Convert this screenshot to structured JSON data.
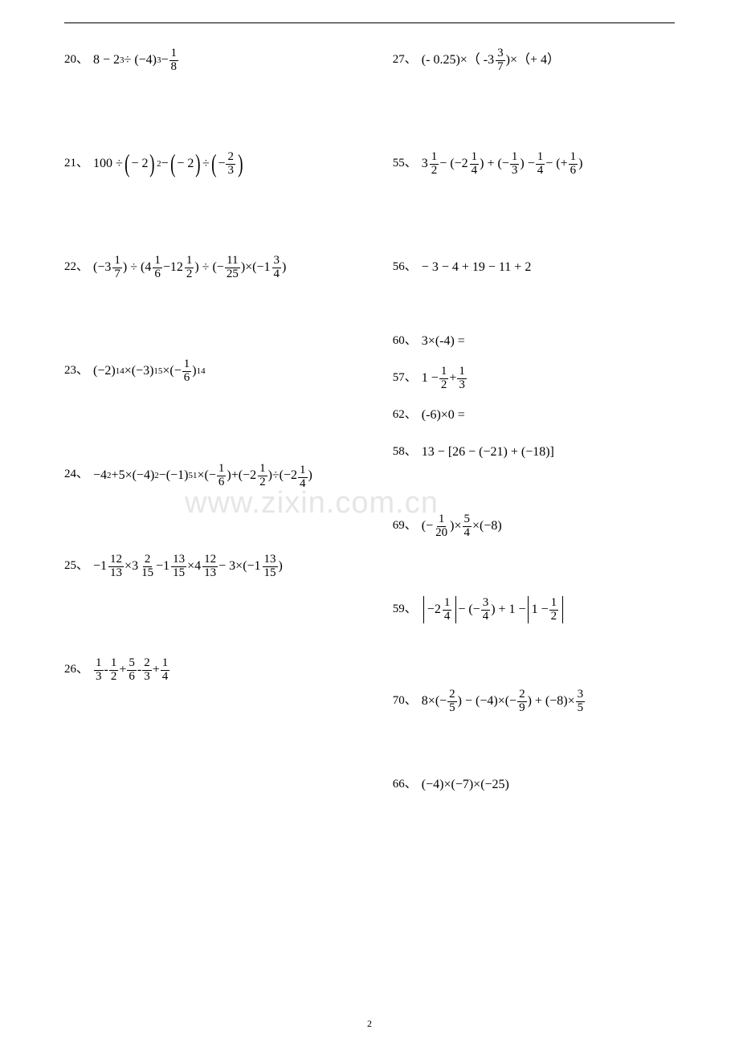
{
  "page_number": "2",
  "watermark": "www.zixin.com.cn",
  "sep": "、",
  "left": [
    {
      "num": "20",
      "expr_html": "<span class='txt'>8 − 2<span class='sup'>3</span> ÷ (−4)<span class='sup'>3</span> − <span class='frac'><span class='num'>1</span><span class='den'>8</span></span></span>",
      "gap": "gap-95"
    },
    {
      "num": "21",
      "expr_html": "<span class='txt'>100 ÷ <span class='bigp-l'>(</span>− 2<span class='bigp-r'>)</span><span class='sup'>2</span> − <span class='bigp-l'>(</span>− 2<span class='bigp-r'>)</span> ÷ <span class='bigp-l'>(</span>− <span class='frac'><span class='num'>2</span><span class='den'>3</span></span><span class='bigp-r'>)</span></span>",
      "gap": "gap-95"
    },
    {
      "num": "22",
      "expr_html": "<span class='txt'>(−<span class='mfrac'><span class='whole'>3</span><span class='frac'><span class='num'>1</span><span class='den'>7</span></span></span>) ÷ (<span class='mfrac'><span class='whole'>4</span><span class='frac'><span class='num'>1</span><span class='den'>6</span></span></span> − <span class='mfrac'><span class='whole'>12</span><span class='frac'><span class='num'>1</span><span class='den'>2</span></span></span>) ÷ (− <span class='frac'><span class='num'>11</span><span class='den'>25</span></span>)×(−<span class='mfrac'><span class='whole'>1</span><span class='frac'><span class='num'>3</span><span class='den'>4</span></span></span>)</span>",
      "gap": "gap-95"
    },
    {
      "num": "23",
      "expr_html": "<span class='txt'>(−2)<span class='sup'>14</span>×(−3)<span class='sup'>15</span>×(− <span class='frac'><span class='num'>1</span><span class='den'>6</span></span>)<span class='sup'>14</span></span>",
      "gap": "gap-95"
    },
    {
      "num": "24",
      "expr_html": "<span class='txt' style='flex-wrap:wrap;max-width:360px'>−4<span class='sup'>2</span>+5×(−4)<span class='sup'>2</span>−(−1)<span class='sup'>51</span>×(− <span class='frac'><span class='num'>1</span><span class='den'>6</span></span>)+(−<span class='mfrac'><span class='whole'>2</span><span class='frac'><span class='num'>1</span><span class='den'>2</span></span></span>)÷(−2<br><span class='frac' style='margin-top:4px'><span class='num'>1</span><span class='den'>4</span></span>)</span>",
      "gap": "gap-80"
    },
    {
      "num": "25",
      "expr_html": "<span class='txt'>−<span class='mfrac'><span class='whole'>1</span><span class='frac'><span class='num'>12</span><span class='den'>13</span></span></span> × <span class='mfrac'><span class='whole'>3</span><span class='frac'><span class='num'>2</span><span class='den'>15</span></span></span> − <span class='mfrac'><span class='whole'>1</span><span class='frac'><span class='num'>13</span><span class='den'>15</span></span></span> × <span class='mfrac'><span class='whole'>4</span><span class='frac'><span class='num'>12</span><span class='den'>13</span></span></span> − 3×(−<span class='mfrac'><span class='whole'>1</span><span class='frac'><span class='num'>13</span><span class='den'>15</span></span></span>)</span>",
      "gap": "gap-95"
    },
    {
      "num": "26",
      "expr_html": "<span class='txt'><span class='frac'><span class='num'>1</span><span class='den'>3</span></span> - <span class='frac'><span class='num'>1</span><span class='den'>2</span></span> + <span class='frac'><span class='num'>5</span><span class='den'>6</span></span> - <span class='frac'><span class='num'>2</span><span class='den'>3</span></span> + <span class='frac'><span class='num'>1</span><span class='den'>4</span></span></span>",
      "gap": ""
    }
  ],
  "right_blocks": [
    {
      "type": "single",
      "num": "27",
      "expr_html": "<span class='txt'>(- 0.25)×（ - <span class='mfrac'><span class='whole'>3</span><span class='frac'><span class='num'>3</span><span class='den'>7</span></span></span>)×（+ 4）</span>",
      "gap": "gap-95"
    },
    {
      "type": "single",
      "num": "55",
      "expr_html": "<span class='txt'><span class='mfrac'><span class='whole'>3</span><span class='frac'><span class='num'>1</span><span class='den'>2</span></span></span> − (−<span class='mfrac'><span class='whole'>2</span><span class='frac'><span class='num'>1</span><span class='den'>4</span></span></span>) + (−<span class='frac'><span class='num'>1</span><span class='den'>3</span></span>) − <span class='frac'><span class='num'>1</span><span class='den'>4</span></span> − (+<span class='frac'><span class='num'>1</span><span class='den'>6</span></span>)</span>",
      "gap": "gap-95"
    },
    {
      "type": "single",
      "num": "56",
      "expr_html": "<span class='txt'>− 3 − 4 + 19 − 11 + 2</span>",
      "gap": "gap-58"
    },
    {
      "type": "group",
      "items": [
        {
          "num": "60",
          "expr_html": "<span class='txt'>3×(-4) =</span>"
        },
        {
          "num": "57",
          "expr_html": "<span class='txt'>1 − <span class='frac'><span class='num'>1</span><span class='den'>2</span></span> + <span class='frac'><span class='num'>1</span><span class='den'>3</span></span></span>"
        },
        {
          "num": "62",
          "expr_html": "<span class='txt'>(-6)×0 =</span>"
        },
        {
          "num": "58",
          "expr_html": "<span class='txt'>13 − [26 − (−21) + (−18)]</span>"
        }
      ],
      "gap": "gap-58"
    },
    {
      "type": "single",
      "num": "69",
      "expr_html": "<span class='txt'>(− <span class='frac'><span class='num'>1</span><span class='den'>20</span></span>)× <span class='frac'><span class='num'>5</span><span class='den'>4</span></span> ×(−8)</span>",
      "gap": "gap-70"
    },
    {
      "type": "single",
      "num": "59",
      "expr_html": "<span class='txt'><span class='abs'>− <span class='mfrac'><span class='whole'>2</span><span class='frac'><span class='num'>1</span><span class='den'>4</span></span></span></span> − (−<span class='frac'><span class='num'>3</span><span class='den'>4</span></span>) + 1 − <span class='abs'>1 − <span class='frac'><span class='num'>1</span><span class='den'>2</span></span></span></span>",
      "gap": "gap-80"
    },
    {
      "type": "single",
      "num": "70",
      "expr_html": "<span class='txt'>8×(−<span class='frac'><span class='num'>2</span><span class='den'>5</span></span>) − (−4)×(−<span class='frac'><span class='num'>2</span><span class='den'>9</span></span>) + (−8)× <span class='frac'><span class='num'>3</span><span class='den'>5</span></span></span>",
      "gap": "gap-70"
    },
    {
      "type": "single",
      "num": "66",
      "expr_html": "<span class='txt'>(−4)×(−7)×(−25)</span>",
      "gap": ""
    }
  ]
}
